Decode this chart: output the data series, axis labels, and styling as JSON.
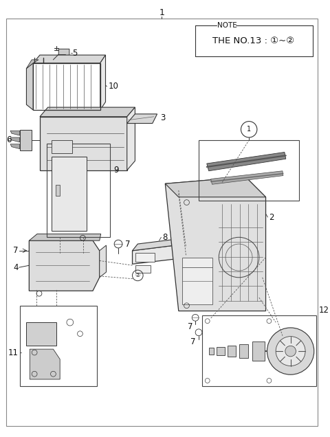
{
  "bg_color": "#ffffff",
  "border_color": "#999999",
  "title": "1",
  "note_text": "NOTE",
  "note_subtext": "THE NO.13 : ①~②",
  "line_color": "#333333",
  "text_color": "#111111",
  "fs_label": 8.5,
  "fs_note": 7.5,
  "fs_note_sub": 9.0
}
